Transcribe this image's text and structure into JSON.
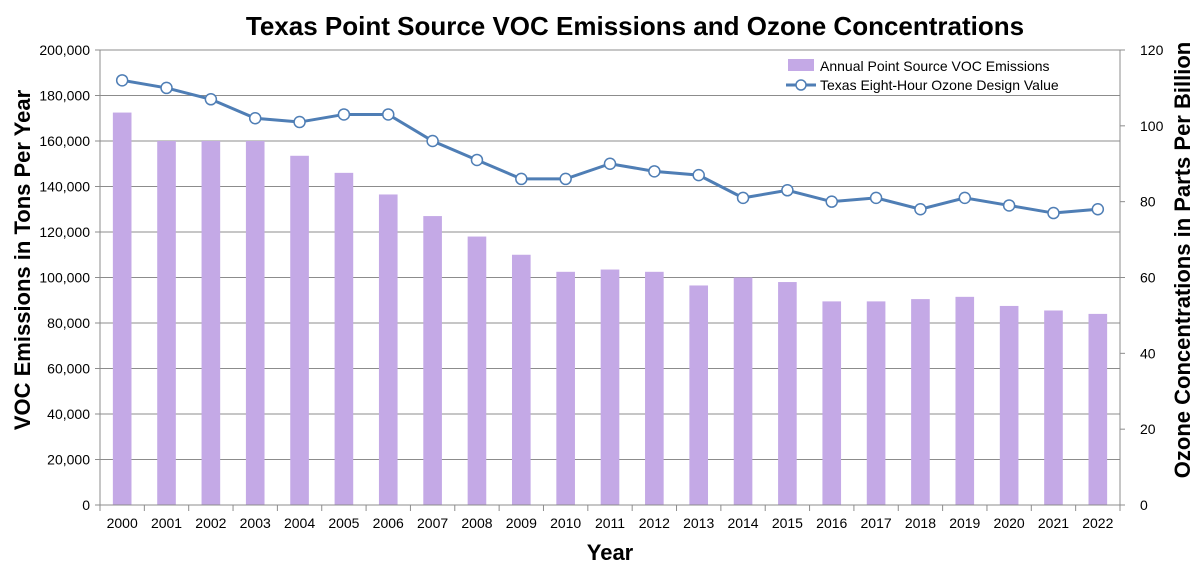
{
  "chart_data": {
    "type": "bar",
    "title": "Texas Point Source VOC Emissions and Ozone Concentrations",
    "xlabel": "Year",
    "ylabel": "VOC Emissions in Tons Per Year",
    "y2label": "Ozone Concentrations in Parts Per Billion",
    "categories": [
      "2000",
      "2001",
      "2002",
      "2003",
      "2004",
      "2005",
      "2006",
      "2007",
      "2008",
      "2009",
      "2010",
      "2011",
      "2012",
      "2013",
      "2014",
      "2015",
      "2016",
      "2017",
      "2018",
      "2019",
      "2020",
      "2021",
      "2022"
    ],
    "ylim": [
      0,
      200000
    ],
    "y2lim": [
      0,
      120
    ],
    "yticks": [
      "0",
      "20,000",
      "40,000",
      "60,000",
      "80,000",
      "100,000",
      "120,000",
      "140,000",
      "160,000",
      "180,000",
      "200,000"
    ],
    "y2ticks": [
      "0",
      "20",
      "40",
      "60",
      "80",
      "100",
      "120"
    ],
    "grid": true,
    "legend_position": "top-right",
    "series": [
      {
        "name": "Annual Point Source VOC Emissions",
        "type": "bar",
        "axis": "left",
        "color": "#c4a9e6",
        "values": [
          172500,
          160000,
          160000,
          160000,
          153500,
          146000,
          136500,
          127000,
          118000,
          110000,
          102500,
          103500,
          102500,
          96500,
          100000,
          98000,
          89500,
          89500,
          90500,
          91500,
          87500,
          85500,
          84000
        ]
      },
      {
        "name": "Texas Eight-Hour Ozone Design Value",
        "type": "line",
        "axis": "right",
        "color": "#4f7eb5",
        "values": [
          112,
          110,
          107,
          102,
          101,
          103,
          103,
          96,
          91,
          86,
          86,
          90,
          88,
          87,
          81,
          83,
          80,
          81,
          78,
          81,
          79,
          77,
          78
        ]
      }
    ]
  }
}
